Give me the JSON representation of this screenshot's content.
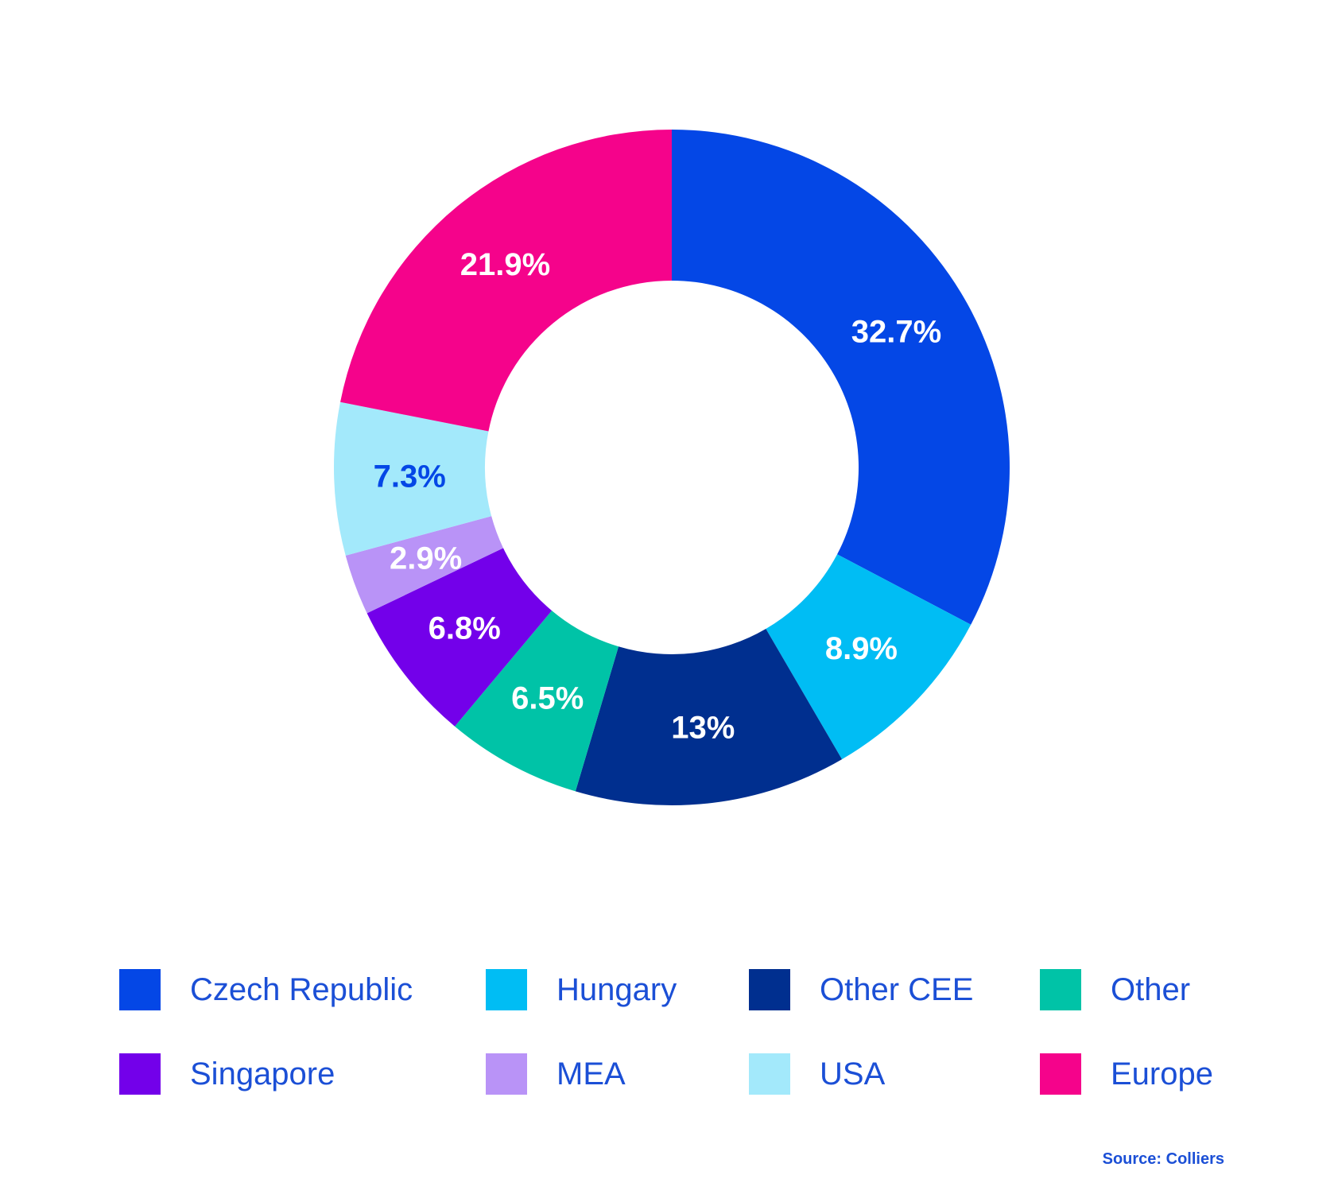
{
  "chart_data": {
    "type": "donut",
    "categories": [
      "Czech Republic",
      "Hungary",
      "Other CEE",
      "Other",
      "Singapore",
      "MEA",
      "USA",
      "Europe"
    ],
    "values": [
      32.7,
      8.9,
      13,
      6.5,
      6.8,
      2.9,
      7.3,
      21.9
    ],
    "data_labels": [
      "32.7%",
      "8.9%",
      "13%",
      "6.5%",
      "6.8%",
      "2.9%",
      "7.3%",
      "21.9%"
    ],
    "colors": [
      "#0447e6",
      "#00bdf4",
      "#002f8f",
      "#00c3a7",
      "#7300ea",
      "#b993f7",
      "#a3e9fb",
      "#f5038b"
    ],
    "label_colors": [
      "#ffffff",
      "#ffffff",
      "#ffffff",
      "#ffffff",
      "#ffffff",
      "#ffffff",
      "#0447e6",
      "#ffffff"
    ],
    "start": "12 o'clock",
    "direction": "clockwise",
    "legend_position": "bottom",
    "legend": [
      {
        "label": "Czech Republic",
        "color": "#0447e6"
      },
      {
        "label": "Hungary",
        "color": "#00bdf4"
      },
      {
        "label": "Other CEE",
        "color": "#002f8f"
      },
      {
        "label": "Other",
        "color": "#00c3a7"
      },
      {
        "label": "Singapore",
        "color": "#7300ea"
      },
      {
        "label": "MEA",
        "color": "#b993f7"
      },
      {
        "label": "USA",
        "color": "#a3e9fb"
      },
      {
        "label": "Europe",
        "color": "#f5038b"
      }
    ],
    "source": "Source: Colliers"
  },
  "colors": {
    "text_accent": "#1b4fd6",
    "background": "#ffffff"
  }
}
